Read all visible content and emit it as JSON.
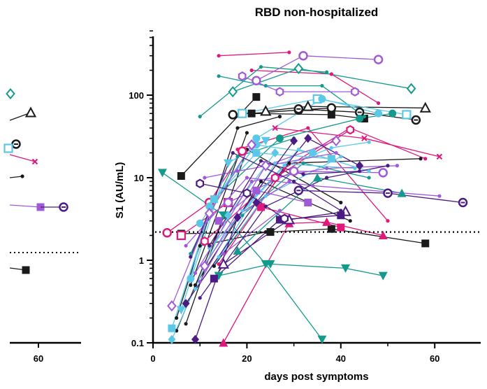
{
  "chart_data": [
    {
      "type": "scatter",
      "title": "RBD non-hospitalized",
      "xlabel": "days post symptoms",
      "ylabel": "S1 (AU/mL)",
      "yscale": "log",
      "xlim": [
        0,
        70
      ],
      "ylim": [
        0.1,
        600
      ],
      "xticks": [
        "0",
        "20",
        "40",
        "60"
      ],
      "yticks": [
        "0.1",
        "1",
        "10",
        "100"
      ],
      "threshold": 2.2,
      "grid": false,
      "legend": "none",
      "series": [
        {
          "color": "#1a1a1a",
          "marker": "square",
          "x": [
            6,
            22
          ],
          "y": [
            10.5,
            95
          ]
        },
        {
          "color": "#1a1a1a",
          "marker": "circle-open",
          "x": [
            17,
            31,
            38
          ],
          "y": [
            58,
            66,
            70
          ]
        },
        {
          "color": "#1a1a1a",
          "marker": "triangle-open",
          "x": [
            24,
            33,
            58
          ],
          "y": [
            64,
            73,
            70
          ]
        },
        {
          "color": "#1a1a1a",
          "marker": "square",
          "x": [
            21,
            38,
            45
          ],
          "y": [
            60,
            58,
            52
          ]
        },
        {
          "color": "#1a1a1a",
          "marker": "circle-hatched",
          "x": [
            31,
            44,
            56
          ],
          "y": [
            68,
            62,
            50
          ]
        },
        {
          "color": "#1a1a1a",
          "marker": "square",
          "x": [
            6,
            25,
            38,
            58
          ],
          "y": [
            2.1,
            2.2,
            2.4,
            1.6
          ]
        },
        {
          "color": "#1a1a1a",
          "marker": "dot",
          "x": [
            10,
            24
          ],
          "y": [
            1.5,
            2.2
          ]
        },
        {
          "color": "#1a1a1a",
          "marker": "dot",
          "x": [
            8,
            20
          ],
          "y": [
            0.5,
            35
          ]
        },
        {
          "color": "#1a1a1a",
          "marker": "dot",
          "x": [
            5,
            18,
            27
          ],
          "y": [
            0.2,
            40,
            55
          ]
        },
        {
          "color": "#1a1a1a",
          "marker": "dot",
          "x": [
            13,
            29,
            57
          ],
          "y": [
            0.85,
            15,
            17
          ]
        },
        {
          "color": "#1a1a1a",
          "marker": "dot",
          "x": [
            7,
            20,
            40
          ],
          "y": [
            0.17,
            22,
            5
          ]
        },
        {
          "color": "#1a1a1a",
          "marker": "dot",
          "x": [
            5,
            15
          ],
          "y": [
            0.14,
            3.3
          ]
        },
        {
          "color": "#1a1a1a",
          "marker": "dot",
          "x": [
            9,
            23,
            42
          ],
          "y": [
            0.5,
            9,
            3
          ]
        },
        {
          "color": "#e0187c",
          "marker": "dot",
          "x": [
            14,
            29
          ],
          "y": [
            300,
            330
          ]
        },
        {
          "color": "#e0187c",
          "marker": "dot",
          "x": [
            21,
            38,
            48
          ],
          "y": [
            200,
            180,
            80
          ]
        },
        {
          "color": "#e0187c",
          "marker": "circle-open",
          "x": [
            3,
            12,
            19
          ],
          "y": [
            2.15,
            5,
            21
          ]
        },
        {
          "color": "#e0187c",
          "marker": "square-open",
          "x": [
            6,
            16
          ],
          "y": [
            2.0,
            5
          ]
        },
        {
          "color": "#e0187c",
          "marker": "square",
          "x": [
            23,
            40
          ],
          "y": [
            4.4,
            2.5
          ]
        },
        {
          "color": "#e0187c",
          "marker": "triangle",
          "x": [
            15,
            29,
            37,
            49
          ],
          "y": [
            0.1,
            2.8,
            2.9,
            2.0
          ]
        },
        {
          "color": "#e0187c",
          "marker": "dot",
          "x": [
            14,
            28,
            42,
            58
          ],
          "y": [
            0.9,
            13,
            40,
            17
          ]
        },
        {
          "color": "#e0187c",
          "marker": "x",
          "x": [
            26,
            45,
            61
          ],
          "y": [
            40,
            30,
            18
          ]
        },
        {
          "color": "#e0187c",
          "marker": "dot",
          "x": [
            18,
            33,
            50
          ],
          "y": [
            22,
            40,
            3
          ]
        },
        {
          "color": "#e0187c",
          "marker": "hexagon",
          "x": [
            11,
            26,
            42
          ],
          "y": [
            1.7,
            10,
            38
          ]
        },
        {
          "color": "#139a8c",
          "marker": "dot",
          "x": [
            10,
            23,
            37
          ],
          "y": [
            55,
            220,
            190
          ]
        },
        {
          "color": "#139a8c",
          "marker": "dot",
          "x": [
            14,
            24,
            36,
            45
          ],
          "y": [
            170,
            130,
            130,
            55
          ]
        },
        {
          "color": "#139a8c",
          "marker": "diamond-open",
          "x": [
            17,
            31,
            55
          ],
          "y": [
            110,
            210,
            120
          ]
        },
        {
          "color": "#139a8c",
          "marker": "triangle-down",
          "x": [
            2,
            15,
            24,
            36
          ],
          "y": [
            11.5,
            3.5,
            0.9,
            0.11
          ]
        },
        {
          "color": "#139a8c",
          "marker": "triangle",
          "x": [
            18,
            35,
            53
          ],
          "y": [
            1.3,
            10,
            6.5
          ]
        },
        {
          "color": "#139a8c",
          "marker": "triangle-down",
          "x": [
            14,
            25,
            41,
            49
          ],
          "y": [
            0.65,
            0.9,
            0.8,
            0.65
          ]
        },
        {
          "color": "#139a8c",
          "marker": "circle",
          "x": [
            13,
            27,
            44,
            51
          ],
          "y": [
            5.5,
            30,
            52,
            60
          ]
        },
        {
          "color": "#139a8c",
          "marker": "dot",
          "x": [
            8,
            18,
            30
          ],
          "y": [
            1.2,
            18,
            30
          ]
        },
        {
          "color": "#139a8c",
          "marker": "dot",
          "x": [
            19,
            32,
            46
          ],
          "y": [
            3.5,
            15,
            10
          ]
        },
        {
          "color": "#5cc8e8",
          "marker": "square",
          "x": [
            4,
            13,
            22,
            38
          ],
          "y": [
            0.15,
            5.5,
            20,
            17
          ]
        },
        {
          "color": "#5cc8e8",
          "marker": "square-open",
          "x": [
            19,
            35,
            54
          ],
          "y": [
            60,
            90,
            58
          ]
        },
        {
          "color": "#5cc8e8",
          "marker": "triangle-down",
          "x": [
            6,
            16,
            24
          ],
          "y": [
            0.25,
            15,
            28
          ]
        },
        {
          "color": "#5cc8e8",
          "marker": "circle",
          "x": [
            8,
            12,
            22,
            34
          ],
          "y": [
            0.6,
            4.5,
            25,
            20
          ]
        },
        {
          "color": "#5cc8e8",
          "marker": "circle",
          "x": [
            10,
            22,
            36,
            48
          ],
          "y": [
            2.8,
            30,
            90,
            60
          ]
        },
        {
          "color": "#5cc8e8",
          "marker": "dot",
          "x": [
            14,
            26,
            43
          ],
          "y": [
            1.1,
            15,
            13
          ]
        },
        {
          "color": "#5cc8e8",
          "marker": "dot",
          "x": [
            11,
            19,
            31,
            46
          ],
          "y": [
            0.9,
            4,
            22,
            12
          ]
        },
        {
          "color": "#5cc8e8",
          "marker": "diamond",
          "x": [
            4,
            16,
            26
          ],
          "y": [
            0.11,
            3.5,
            20
          ]
        },
        {
          "color": "#5cc8e8",
          "marker": "dot",
          "x": [
            12,
            28,
            38,
            46
          ],
          "y": [
            1.4,
            14,
            23,
            27
          ]
        },
        {
          "color": "#5cc8e8",
          "marker": "dot",
          "x": [
            9,
            24,
            40
          ],
          "y": [
            0.45,
            6,
            18
          ]
        },
        {
          "color": "#a05ad8",
          "marker": "circle-open",
          "x": [
            22,
            32,
            48
          ],
          "y": [
            150,
            300,
            270
          ]
        },
        {
          "color": "#a05ad8",
          "marker": "hexagon",
          "x": [
            19,
            27,
            43
          ],
          "y": [
            170,
            110,
            110
          ]
        },
        {
          "color": "#a05ad8",
          "marker": "diamond-open",
          "x": [
            4,
            12,
            21
          ],
          "y": [
            0.28,
            3.7,
            25
          ]
        },
        {
          "color": "#a05ad8",
          "marker": "dot",
          "x": [
            11,
            18,
            39
          ],
          "y": [
            10,
            12,
            20
          ]
        },
        {
          "color": "#a05ad8",
          "marker": "square",
          "x": [
            14,
            22,
            33
          ],
          "y": [
            3,
            7,
            5
          ]
        },
        {
          "color": "#a05ad8",
          "marker": "dot",
          "x": [
            7,
            20,
            34,
            61
          ],
          "y": [
            1.5,
            10,
            8,
            6
          ]
        },
        {
          "color": "#a05ad8",
          "marker": "circle-open",
          "x": [
            16,
            30,
            49
          ],
          "y": [
            5,
            12,
            11.5
          ]
        },
        {
          "color": "#a05ad8",
          "marker": "dot",
          "x": [
            9,
            21,
            37,
            52
          ],
          "y": [
            0.7,
            9,
            13,
            14
          ]
        },
        {
          "color": "#a05ad8",
          "marker": "dot",
          "x": [
            15,
            27
          ],
          "y": [
            1.2,
            4
          ]
        },
        {
          "color": "#a05ad8",
          "marker": "diamond-open",
          "x": [
            11,
            24,
            39
          ],
          "y": [
            0.85,
            14,
            28
          ]
        },
        {
          "color": "#a05ad8",
          "marker": "dot",
          "x": [
            10,
            18,
            29
          ],
          "y": [
            0.55,
            3.5,
            9
          ]
        },
        {
          "color": "#4b1a82",
          "marker": "circle-hatched",
          "x": [
            31,
            50,
            66
          ],
          "y": [
            7,
            6.5,
            5
          ]
        },
        {
          "color": "#4b1a82",
          "marker": "diamond",
          "x": [
            9,
            18,
            30
          ],
          "y": [
            0.11,
            3.3,
            28
          ]
        },
        {
          "color": "#4b1a82",
          "marker": "triangle-open",
          "x": [
            15,
            29,
            41
          ],
          "y": [
            0.9,
            3.1,
            3.9
          ]
        },
        {
          "color": "#4b1a82",
          "marker": "dot",
          "x": [
            12,
            23,
            32,
            44
          ],
          "y": [
            1.5,
            16,
            11,
            12
          ]
        },
        {
          "color": "#4b1a82",
          "marker": "dot",
          "x": [
            10,
            24,
            37,
            50
          ],
          "y": [
            0.35,
            4.5,
            10,
            14
          ]
        },
        {
          "color": "#4b1a82",
          "marker": "diamond",
          "x": [
            7,
            22,
            33,
            44
          ],
          "y": [
            0.3,
            5,
            30,
            14
          ]
        },
        {
          "color": "#4b1a82",
          "marker": "dot",
          "x": [
            8,
            17,
            30,
            40
          ],
          "y": [
            1.1,
            20,
            9,
            4
          ]
        },
        {
          "color": "#4b1a82",
          "marker": "square",
          "x": [
            13,
            27,
            40
          ],
          "y": [
            0.6,
            3.1,
            3.5
          ]
        },
        {
          "color": "#4b1a82",
          "marker": "hexagon",
          "x": [
            10,
            20,
            28
          ],
          "y": [
            8.5,
            6.5,
            3.2
          ]
        }
      ]
    }
  ],
  "left_panel": {
    "xticks": [
      "60"
    ]
  }
}
